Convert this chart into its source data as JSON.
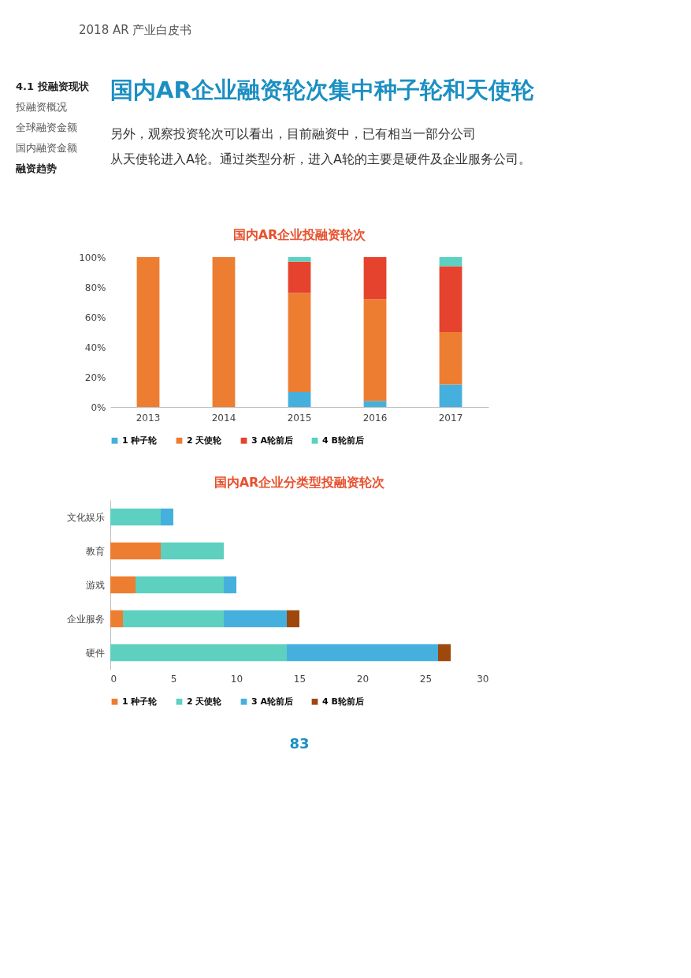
{
  "chart_data": [
    {
      "type": "other",
      "title": "国内AR企业融资轮次集中种子轮和天使轮",
      "annotations": [
        "2018 AR 产业白皮书",
        "4.1 投融资现状",
        "投融资概况",
        "全球融资金额",
        "国内融资金额",
        "融资趋势",
        "另外，观察投资轮次可以看出，目前融资中，已有相当一部分公司",
        "从天使轮进入A轮。通过类型分析，进入A轮的主要是硬件及企业服务公司。"
      ]
    },
    {
      "type": "bar",
      "title": "国内AR企业投融资轮次",
      "stacked": true,
      "legend": "bottom",
      "categories": [
        "2013",
        "2014",
        "2015",
        "2016",
        "2017"
      ],
      "ylim": [
        0,
        100
      ],
      "yticks": [
        {
          "value": 0,
          "label": "0%"
        },
        {
          "value": 20,
          "label": "20%"
        },
        {
          "value": 40,
          "label": "40%"
        },
        {
          "value": 60,
          "label": "60%"
        },
        {
          "value": 80,
          "label": "80%"
        },
        {
          "value": 100,
          "label": "100%"
        }
      ],
      "series": [
        {
          "name": "1 种子轮",
          "color": "#45b0dd",
          "values": [
            0,
            0,
            10,
            4,
            15
          ]
        },
        {
          "name": "2 天使轮",
          "color": "#ed7d31",
          "values": [
            100,
            100,
            66,
            68,
            35
          ]
        },
        {
          "name": "3 A轮前后",
          "color": "#e5432e",
          "values": [
            0,
            0,
            21,
            28,
            44
          ]
        },
        {
          "name": "4 B轮前后",
          "color": "#5ad1c1",
          "values": [
            0,
            0,
            3,
            0,
            6
          ]
        }
      ]
    },
    {
      "type": "bar",
      "title": "国内AR企业分类型投融资轮次",
      "stacked": true,
      "orientation": "horizontal",
      "legend": "bottom",
      "categories": [
        "文化娱乐",
        "教育",
        "游戏",
        "企业服务",
        "硬件"
      ],
      "xlim": [
        0,
        30
      ],
      "xticks": [
        0,
        5,
        10,
        15,
        20,
        25,
        30
      ],
      "annotations": [
        "83"
      ],
      "series": [
        {
          "name": "1 种子轮",
          "color": "#ed7d31",
          "values": [
            0,
            4,
            2,
            1,
            0
          ]
        },
        {
          "name": "2 天使轮",
          "color": "#5dd0c0",
          "values": [
            4,
            5,
            7,
            8,
            14
          ]
        },
        {
          "name": "3 A轮前后",
          "color": "#45b0dd",
          "values": [
            1,
            0,
            1,
            5,
            12
          ]
        },
        {
          "name": "4 B轮前后",
          "color": "#9e480e",
          "values": [
            0,
            0,
            0,
            1,
            1
          ]
        }
      ]
    }
  ]
}
